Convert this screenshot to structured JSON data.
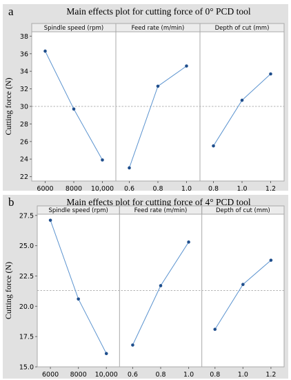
{
  "chart_data": [
    {
      "type": "line",
      "panel_letter": "a",
      "title": "Main effects plot for cutting force of 0° PCD tool",
      "ylabel": "Cutting force (N)",
      "ylim": [
        21.5,
        38.5
      ],
      "yticks": [
        22,
        24,
        26,
        28,
        30,
        32,
        34,
        36,
        38
      ],
      "ytick_labels": [
        "22",
        "24",
        "26",
        "28",
        "30",
        "32",
        "34",
        "36",
        "38"
      ],
      "reference_mean": 30.0,
      "facets": [
        {
          "name": "Spindle speed (rpm)",
          "categories": [
            "6000",
            "8000",
            "10,000"
          ],
          "values": [
            36.3,
            29.7,
            23.9
          ]
        },
        {
          "name": "Feed rate (m/min)",
          "categories": [
            "0.6",
            "0.8",
            "1.0"
          ],
          "values": [
            23.0,
            32.3,
            34.6
          ]
        },
        {
          "name": "Depth of cut (mm)",
          "categories": [
            "0.8",
            "1.0",
            "1.2"
          ],
          "values": [
            25.5,
            30.7,
            33.7
          ]
        }
      ]
    },
    {
      "type": "line",
      "panel_letter": "b",
      "title": "Main effects plot for cutting force of 4° PCD tool",
      "ylabel": "Cutting force (N)",
      "ylim": [
        15.0,
        27.6
      ],
      "yticks": [
        15.0,
        17.5,
        20.0,
        22.5,
        25.0,
        27.5
      ],
      "ytick_labels": [
        "15.0",
        "17.5",
        "20.0",
        "22.5",
        "25.0",
        "27.5"
      ],
      "reference_mean": 21.3,
      "facets": [
        {
          "name": "Spindle speed (rpm)",
          "categories": [
            "6000",
            "8000",
            "10,000"
          ],
          "values": [
            27.1,
            20.6,
            16.1
          ]
        },
        {
          "name": "Feed rate (m/min)",
          "categories": [
            "0.6",
            "0.8",
            "1.0"
          ],
          "values": [
            16.8,
            21.7,
            25.3
          ]
        },
        {
          "name": "Depth of cut (mm)",
          "categories": [
            "0.8",
            "1.0",
            "1.2"
          ],
          "values": [
            18.1,
            21.8,
            23.8
          ]
        }
      ]
    }
  ]
}
